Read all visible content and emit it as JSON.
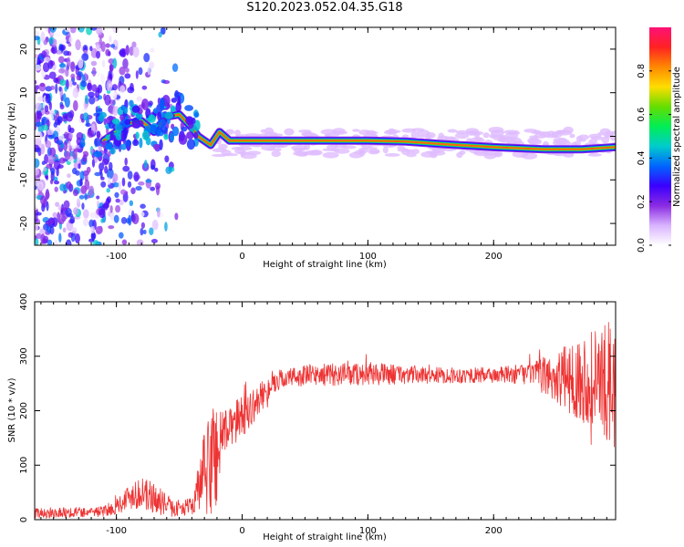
{
  "figure": {
    "title": "S120.2023.052.04.35.G18"
  },
  "chart_data": [
    {
      "type": "heatmap",
      "xlabel": "Height of straight line (km)",
      "ylabel": "Frequency (Hz)",
      "xlim": [
        -165,
        297
      ],
      "ylim": [
        -25,
        25
      ],
      "x_ticks": [
        -100,
        0,
        100,
        200
      ],
      "y_ticks": [
        -20,
        -10,
        0,
        10,
        20
      ],
      "colorbar": {
        "label": "Normalized spectral amplitude",
        "range": [
          0.0,
          1.0
        ],
        "ticks": [
          "0.0",
          "0.2",
          "0.4",
          "0.6",
          "0.8"
        ],
        "colors": [
          "#ffffff",
          "#d9b3ff",
          "#8a2be2",
          "#3a00ff",
          "#0066ff",
          "#00cccc",
          "#00ee55",
          "#66dd00",
          "#ffdd00",
          "#ff8800",
          "#ff2222",
          "#ff1177"
        ]
      },
      "ridge": [
        {
          "x": -110,
          "y": -1,
          "v": 0.25
        },
        {
          "x": -100,
          "y": 1,
          "v": 0.3
        },
        {
          "x": -90,
          "y": 3,
          "v": 0.3
        },
        {
          "x": -80,
          "y": 3.5,
          "v": 0.3
        },
        {
          "x": -70,
          "y": 1,
          "v": 0.3
        },
        {
          "x": -60,
          "y": 4.5,
          "v": 0.3
        },
        {
          "x": -50,
          "y": 5,
          "v": 0.3
        },
        {
          "x": -40,
          "y": 2,
          "v": 0.3
        },
        {
          "x": -35,
          "y": 0,
          "v": 0.45
        },
        {
          "x": -25,
          "y": -2,
          "v": 0.5
        },
        {
          "x": -18,
          "y": 1,
          "v": 0.5
        },
        {
          "x": -10,
          "y": -1,
          "v": 0.7
        },
        {
          "x": 0,
          "y": -1,
          "v": 0.9
        },
        {
          "x": 30,
          "y": -1,
          "v": 0.9
        },
        {
          "x": 70,
          "y": -1,
          "v": 0.9
        },
        {
          "x": 100,
          "y": -1,
          "v": 0.9
        },
        {
          "x": 130,
          "y": -1.2,
          "v": 0.9
        },
        {
          "x": 160,
          "y": -1.8,
          "v": 0.9
        },
        {
          "x": 200,
          "y": -2.5,
          "v": 0.9
        },
        {
          "x": 240,
          "y": -3,
          "v": 0.9
        },
        {
          "x": 270,
          "y": -3,
          "v": 0.8
        },
        {
          "x": 297,
          "y": -2.5,
          "v": 0.6
        }
      ]
    },
    {
      "type": "line",
      "xlabel": "Height of straight line (km)",
      "ylabel": "SNR (10 * v/v)",
      "xlim": [
        -165,
        297
      ],
      "ylim": [
        0,
        400
      ],
      "x_ticks": [
        -100,
        0,
        100,
        200
      ],
      "y_ticks": [
        0,
        100,
        200,
        300,
        400
      ],
      "color": "#ee3333",
      "envelope": [
        {
          "x": -165,
          "y": 12,
          "noise": 10
        },
        {
          "x": -110,
          "y": 15,
          "noise": 10
        },
        {
          "x": -100,
          "y": 25,
          "noise": 15
        },
        {
          "x": -85,
          "y": 50,
          "noise": 30
        },
        {
          "x": -70,
          "y": 40,
          "noise": 30
        },
        {
          "x": -55,
          "y": 20,
          "noise": 15
        },
        {
          "x": -40,
          "y": 25,
          "noise": 15
        },
        {
          "x": -30,
          "y": 80,
          "noise": 80
        },
        {
          "x": -20,
          "y": 130,
          "noise": 130
        },
        {
          "x": -15,
          "y": 160,
          "noise": 40
        },
        {
          "x": 0,
          "y": 190,
          "noise": 40
        },
        {
          "x": 10,
          "y": 210,
          "noise": 30
        },
        {
          "x": 20,
          "y": 240,
          "noise": 25
        },
        {
          "x": 30,
          "y": 258,
          "noise": 18
        },
        {
          "x": 50,
          "y": 265,
          "noise": 20
        },
        {
          "x": 100,
          "y": 268,
          "noise": 22
        },
        {
          "x": 150,
          "y": 265,
          "noise": 15
        },
        {
          "x": 200,
          "y": 265,
          "noise": 15
        },
        {
          "x": 230,
          "y": 268,
          "noise": 20
        },
        {
          "x": 250,
          "y": 260,
          "noise": 50
        },
        {
          "x": 270,
          "y": 260,
          "noise": 80
        },
        {
          "x": 297,
          "y": 250,
          "noise": 120
        }
      ]
    }
  ]
}
